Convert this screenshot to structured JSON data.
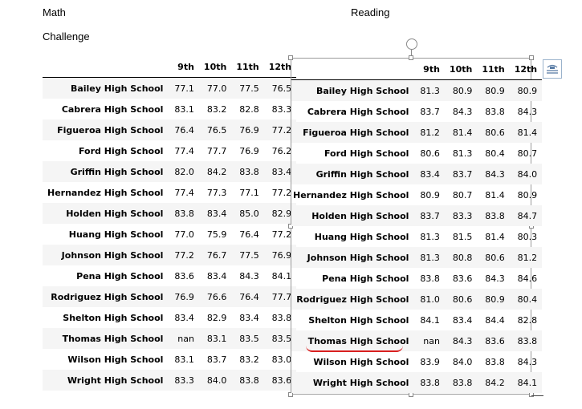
{
  "labels": {
    "math": "Math",
    "challenge": "Challenge",
    "reading": "Reading"
  },
  "columns": [
    "9th",
    "10th",
    "11th",
    "12th"
  ],
  "math": {
    "rows": [
      {
        "school": "Bailey High School",
        "values": [
          "77.1",
          "77.0",
          "77.5",
          "76.5"
        ]
      },
      {
        "school": "Cabrera High School",
        "values": [
          "83.1",
          "83.2",
          "82.8",
          "83.3"
        ]
      },
      {
        "school": "Figueroa High School",
        "values": [
          "76.4",
          "76.5",
          "76.9",
          "77.2"
        ]
      },
      {
        "school": "Ford High School",
        "values": [
          "77.4",
          "77.7",
          "76.9",
          "76.2"
        ]
      },
      {
        "school": "Griffin High School",
        "values": [
          "82.0",
          "84.2",
          "83.8",
          "83.4"
        ]
      },
      {
        "school": "Hernandez High School",
        "values": [
          "77.4",
          "77.3",
          "77.1",
          "77.2"
        ]
      },
      {
        "school": "Holden High School",
        "values": [
          "83.8",
          "83.4",
          "85.0",
          "82.9"
        ]
      },
      {
        "school": "Huang High School",
        "values": [
          "77.0",
          "75.9",
          "76.4",
          "77.2"
        ]
      },
      {
        "school": "Johnson High School",
        "values": [
          "77.2",
          "76.7",
          "77.5",
          "76.9"
        ]
      },
      {
        "school": "Pena High School",
        "values": [
          "83.6",
          "83.4",
          "84.3",
          "84.1"
        ]
      },
      {
        "school": "Rodriguez High School",
        "values": [
          "76.9",
          "76.6",
          "76.4",
          "77.7"
        ]
      },
      {
        "school": "Shelton High School",
        "values": [
          "83.4",
          "82.9",
          "83.4",
          "83.8"
        ]
      },
      {
        "school": "Thomas High School",
        "values": [
          "nan",
          "83.1",
          "83.5",
          "83.5"
        ]
      },
      {
        "school": "Wilson High School",
        "values": [
          "83.1",
          "83.7",
          "83.2",
          "83.0"
        ]
      },
      {
        "school": "Wright High School",
        "values": [
          "83.3",
          "84.0",
          "83.8",
          "83.6"
        ]
      }
    ]
  },
  "reading": {
    "rows": [
      {
        "school": "Bailey High School",
        "values": [
          "81.3",
          "80.9",
          "80.9",
          "80.9"
        ]
      },
      {
        "school": "Cabrera High School",
        "values": [
          "83.7",
          "84.3",
          "83.8",
          "84.3"
        ]
      },
      {
        "school": "Figueroa High School",
        "values": [
          "81.2",
          "81.4",
          "80.6",
          "81.4"
        ]
      },
      {
        "school": "Ford High School",
        "values": [
          "80.6",
          "81.3",
          "80.4",
          "80.7"
        ]
      },
      {
        "school": "Griffin High School",
        "values": [
          "83.4",
          "83.7",
          "84.3",
          "84.0"
        ]
      },
      {
        "school": "Hernandez High School",
        "values": [
          "80.9",
          "80.7",
          "81.4",
          "80.9"
        ]
      },
      {
        "school": "Holden High School",
        "values": [
          "83.7",
          "83.3",
          "83.8",
          "84.7"
        ]
      },
      {
        "school": "Huang High School",
        "values": [
          "81.3",
          "81.5",
          "81.4",
          "80.3"
        ]
      },
      {
        "school": "Johnson High School",
        "values": [
          "81.3",
          "80.8",
          "80.6",
          "81.2"
        ]
      },
      {
        "school": "Pena High School",
        "values": [
          "83.8",
          "83.6",
          "84.3",
          "84.6"
        ]
      },
      {
        "school": "Rodriguez High School",
        "values": [
          "81.0",
          "80.6",
          "80.9",
          "80.4"
        ]
      },
      {
        "school": "Shelton High School",
        "values": [
          "84.1",
          "83.4",
          "84.4",
          "82.8"
        ]
      },
      {
        "school": "Thomas High School",
        "values": [
          "nan",
          "84.3",
          "83.6",
          "83.8"
        ]
      },
      {
        "school": "Wilson High School",
        "values": [
          "83.9",
          "84.0",
          "83.8",
          "84.3"
        ]
      },
      {
        "school": "Wright High School",
        "values": [
          "83.8",
          "83.8",
          "84.2",
          "84.1"
        ]
      }
    ]
  },
  "icons": {
    "rotate_handle": "rotate-icon",
    "layout_options": "layout-options-icon"
  },
  "colors": {
    "annotation_underline": "#d92020",
    "selection_border": "#9a9a9a",
    "stripe": "#f5f5f5"
  }
}
